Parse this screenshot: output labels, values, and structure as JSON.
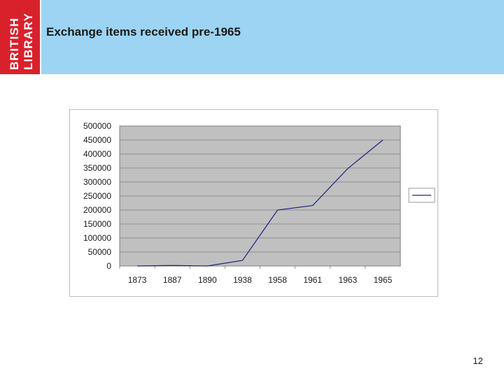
{
  "slide": {
    "title": "Exchange items received pre-1965",
    "page_number": "12",
    "logo": {
      "line1": "BRITISH",
      "line2": "LIBRARY"
    }
  },
  "colors": {
    "logo": "#d9212c",
    "header": "#9dd4f3",
    "plot_bg": "#c0c0c0",
    "line": "#1a237e"
  },
  "chart_data": {
    "type": "line",
    "title": "",
    "xlabel": "",
    "ylabel": "",
    "categories": [
      "1873",
      "1887",
      "1890",
      "1938",
      "1958",
      "1961",
      "1963",
      "1965"
    ],
    "series": [
      {
        "values": [
          0,
          2000,
          0,
          20000,
          200000,
          216000,
          348000,
          450000
        ]
      }
    ],
    "ylim": [
      0,
      500000
    ],
    "yticks": [
      0,
      50000,
      100000,
      150000,
      200000,
      250000,
      300000,
      350000,
      400000,
      450000,
      500000
    ],
    "grid": true,
    "legend": "right"
  }
}
